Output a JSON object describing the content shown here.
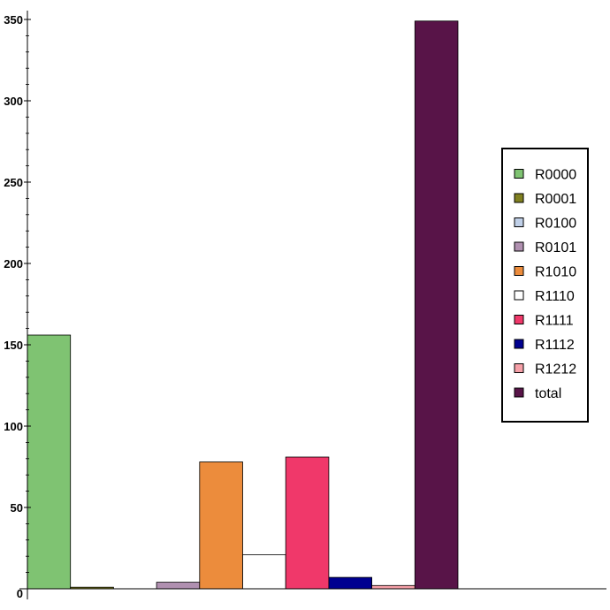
{
  "chart_data": {
    "type": "bar",
    "title": "",
    "xlabel": "",
    "ylabel": "",
    "ylim": [
      0,
      356
    ],
    "yticks": [
      0,
      50,
      100,
      150,
      200,
      250,
      300,
      350
    ],
    "ytick_labels": [
      "0",
      "50",
      "100",
      "150",
      "200",
      "250",
      "300",
      "350"
    ],
    "minor_tick_step": 10,
    "grid": false,
    "legend_position": "right",
    "series": [
      {
        "name": "R0000",
        "value": 156,
        "color": "#7fc372"
      },
      {
        "name": "R0001",
        "value": 1,
        "color": "#808020"
      },
      {
        "name": "R0100",
        "value": 0,
        "color": "#c0d0e8"
      },
      {
        "name": "R0101",
        "value": 4,
        "color": "#b090b0"
      },
      {
        "name": "R1010",
        "value": 78,
        "color": "#ec8c3c"
      },
      {
        "name": "R1110",
        "value": 21,
        "color": "#ffffff"
      },
      {
        "name": "R1111",
        "value": 81,
        "color": "#f0386a"
      },
      {
        "name": "R1112",
        "value": 7,
        "color": "#000090"
      },
      {
        "name": "R1212",
        "value": 2,
        "color": "#f6a0a8"
      },
      {
        "name": "total",
        "value": 349,
        "color": "#581448"
      }
    ]
  }
}
